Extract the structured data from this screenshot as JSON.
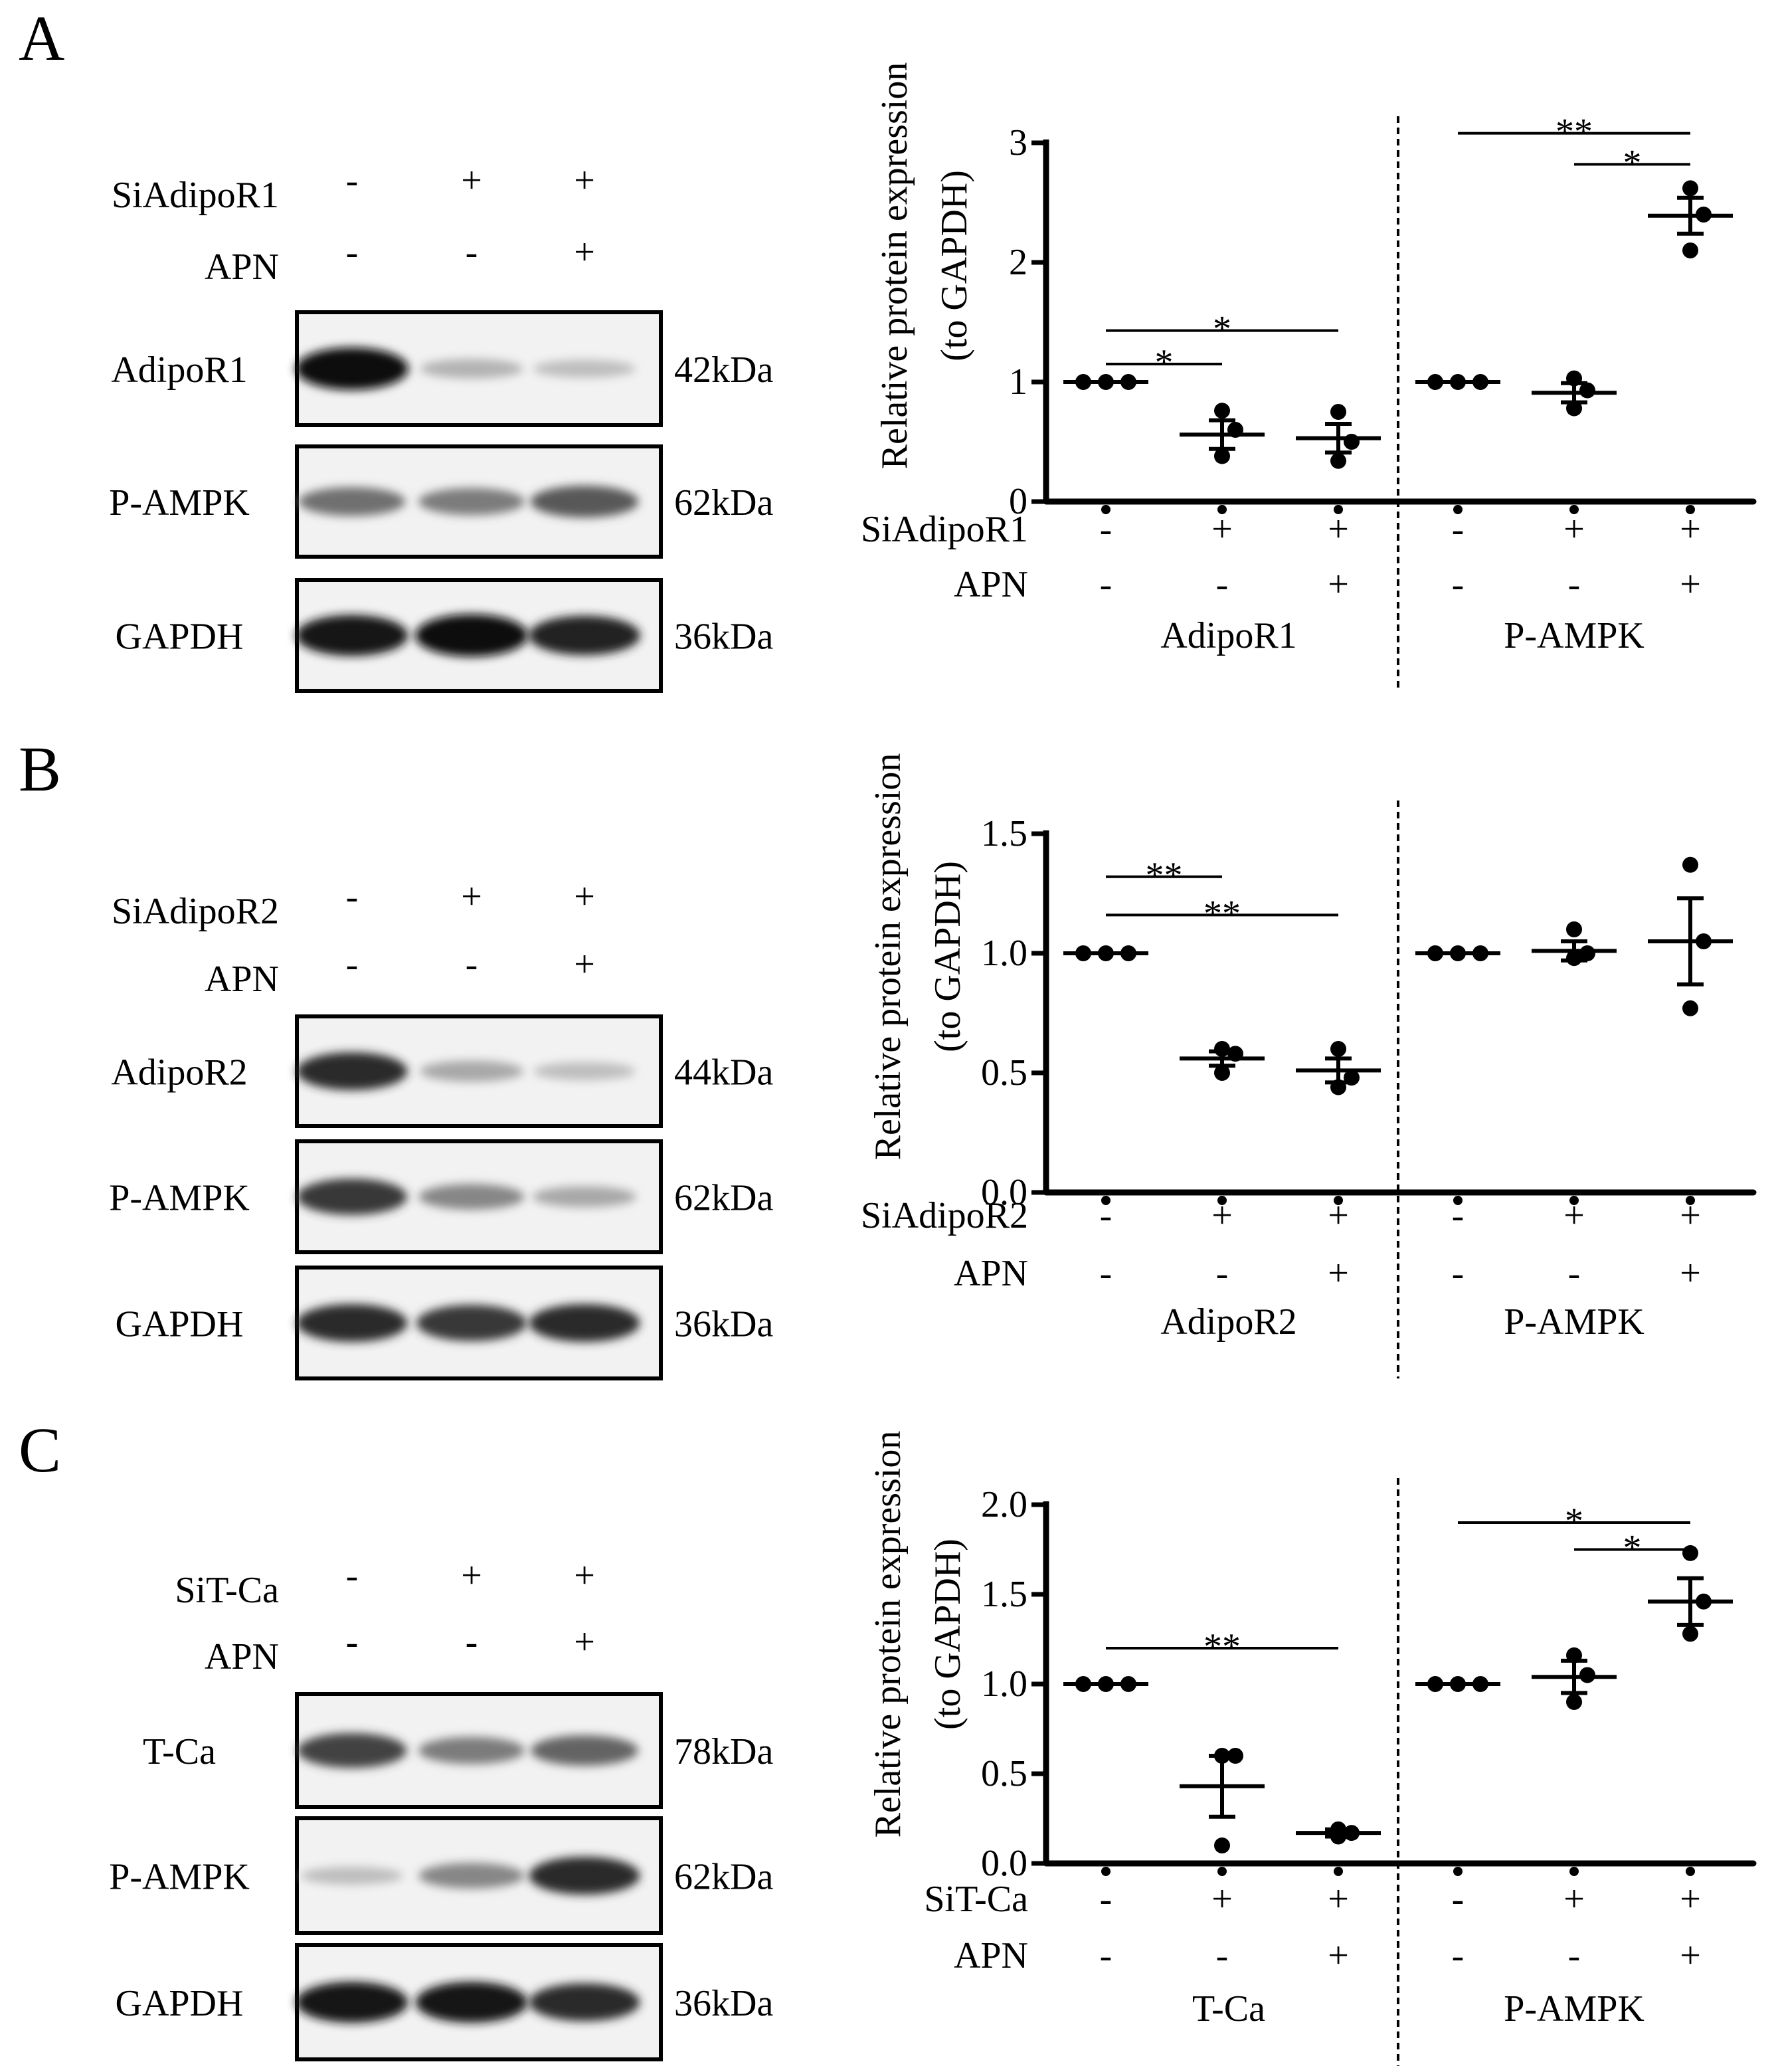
{
  "colors": {
    "ink": "#000000",
    "background": "#ffffff",
    "blot_background": "#f2f2f2"
  },
  "panels": [
    {
      "letter": "A",
      "blot": {
        "header": [
          {
            "label": "SiAdipoR1",
            "marks": [
              "-",
              "+",
              "+"
            ]
          },
          {
            "label": "APN",
            "marks": [
              "-",
              "-",
              "+"
            ]
          }
        ],
        "rows": [
          {
            "label": "AdipoR1",
            "size": "42kDa",
            "bands": [
              1.0,
              0.25,
              0.2
            ]
          },
          {
            "label": "P-AMPK",
            "size": "62kDa",
            "bands": [
              0.55,
              0.5,
              0.65
            ]
          },
          {
            "label": "GAPDH",
            "size": "36kDa",
            "bands": [
              0.95,
              1.0,
              0.9
            ]
          }
        ]
      },
      "chart_data": {
        "type": "scatter",
        "ylabel": [
          "Relative protein expression",
          "(to GAPDH)"
        ],
        "ylim": [
          0,
          3
        ],
        "yticks": [
          "0",
          "1",
          "2",
          "3"
        ],
        "ytick_values": [
          0,
          1,
          2,
          3
        ],
        "x_rows": [
          {
            "label": "SiAdipoR1",
            "marks": [
              "-",
              "+",
              "+",
              "-",
              "+",
              "+"
            ]
          },
          {
            "label": "APN",
            "marks": [
              "-",
              "-",
              "+",
              "-",
              "-",
              "+"
            ]
          }
        ],
        "groups": [
          "AdipoR1",
          "P-AMPK"
        ],
        "points": [
          [
            1.0,
            1.0,
            1.0
          ],
          [
            0.76,
            0.6,
            0.38
          ],
          [
            0.75,
            0.5,
            0.34
          ],
          [
            1.0,
            1.0,
            1.0
          ],
          [
            1.03,
            0.93,
            0.78
          ],
          [
            2.62,
            2.4,
            2.1
          ]
        ],
        "means": [
          1.0,
          0.56,
          0.53,
          1.0,
          0.91,
          2.39
        ],
        "sems": [
          0.0,
          0.12,
          0.12,
          0.0,
          0.08,
          0.15
        ],
        "significance": [
          {
            "from": 0,
            "to": 1,
            "label": "*",
            "y": 1.15
          },
          {
            "from": 0,
            "to": 2,
            "label": "*",
            "y": 1.43
          },
          {
            "from": 3,
            "to": 5,
            "label": "**",
            "y": 3.08
          },
          {
            "from": 4,
            "to": 5,
            "label": "*",
            "y": 2.82
          }
        ]
      }
    },
    {
      "letter": "B",
      "blot": {
        "header": [
          {
            "label": "SiAdipoR2",
            "marks": [
              "-",
              "+",
              "+"
            ]
          },
          {
            "label": "APN",
            "marks": [
              "-",
              "-",
              "+"
            ]
          }
        ],
        "rows": [
          {
            "label": "AdipoR2",
            "size": "44kDa",
            "bands": [
              0.85,
              0.3,
              0.2
            ]
          },
          {
            "label": "P-AMPK",
            "size": "62kDa",
            "bands": [
              0.8,
              0.45,
              0.3
            ]
          },
          {
            "label": "GAPDH",
            "size": "36kDa",
            "bands": [
              0.85,
              0.8,
              0.85
            ]
          }
        ]
      },
      "chart_data": {
        "type": "scatter",
        "ylabel": [
          "Relative protein expression",
          "(to GAPDH)"
        ],
        "ylim": [
          0,
          1.5
        ],
        "yticks": [
          "0.0",
          "0.5",
          "1.0",
          "1.5"
        ],
        "ytick_values": [
          0,
          0.5,
          1.0,
          1.5
        ],
        "x_rows": [
          {
            "label": "SiAdipoR2",
            "marks": [
              "-",
              "+",
              "+",
              "-",
              "+",
              "+"
            ]
          },
          {
            "label": "APN",
            "marks": [
              "-",
              "-",
              "+",
              "-",
              "-",
              "+"
            ]
          }
        ],
        "groups": [
          "AdipoR2",
          "P-AMPK"
        ],
        "points": [
          [
            1.0,
            1.0,
            1.0
          ],
          [
            0.6,
            0.58,
            0.5
          ],
          [
            0.6,
            0.48,
            0.44
          ],
          [
            1.0,
            1.0,
            1.0
          ],
          [
            1.1,
            1.0,
            0.98
          ],
          [
            1.37,
            1.05,
            0.77
          ]
        ],
        "means": [
          1.0,
          0.56,
          0.51,
          1.0,
          1.01,
          1.05
        ],
        "sems": [
          0.0,
          0.03,
          0.05,
          0.0,
          0.04,
          0.18
        ],
        "significance": [
          {
            "from": 0,
            "to": 1,
            "label": "**",
            "y": 1.32
          },
          {
            "from": 0,
            "to": 2,
            "label": "**",
            "y": 1.16
          }
        ]
      }
    },
    {
      "letter": "C",
      "blot": {
        "header": [
          {
            "label": "SiT-Ca",
            "marks": [
              "-",
              "+",
              "+"
            ]
          },
          {
            "label": "APN",
            "marks": [
              "-",
              "-",
              "+"
            ]
          }
        ],
        "rows": [
          {
            "label": "T-Ca",
            "size": "78kDa",
            "bands": [
              0.75,
              0.5,
              0.6
            ]
          },
          {
            "label": "P-AMPK",
            "size": "62kDa",
            "bands": [
              0.2,
              0.45,
              0.85
            ]
          },
          {
            "label": "GAPDH",
            "size": "36kDa",
            "bands": [
              0.95,
              0.95,
              0.85
            ]
          }
        ]
      },
      "chart_data": {
        "type": "scatter",
        "ylabel": [
          "Relative protein expression",
          "(to GAPDH)"
        ],
        "ylim": [
          0,
          2.0
        ],
        "yticks": [
          "0.0",
          "0.5",
          "1.0",
          "1.5",
          "2.0"
        ],
        "ytick_values": [
          0,
          0.5,
          1.0,
          1.5,
          2.0
        ],
        "x_rows": [
          {
            "label": "SiT-Ca",
            "marks": [
              "-",
              "+",
              "+",
              "-",
              "+",
              "+"
            ]
          },
          {
            "label": "APN",
            "marks": [
              "-",
              "-",
              "+",
              "-",
              "-",
              "+"
            ]
          }
        ],
        "groups": [
          "T-Ca",
          "P-AMPK"
        ],
        "points": [
          [
            1.0,
            1.0,
            1.0
          ],
          [
            0.6,
            0.6,
            0.1
          ],
          [
            0.19,
            0.17,
            0.15
          ],
          [
            1.0,
            1.0,
            1.0
          ],
          [
            1.16,
            1.05,
            0.9
          ],
          [
            1.73,
            1.46,
            1.28
          ]
        ],
        "means": [
          1.0,
          0.43,
          0.17,
          1.0,
          1.04,
          1.46
        ],
        "sems": [
          0.0,
          0.17,
          0.02,
          0.0,
          0.09,
          0.13
        ],
        "significance": [
          {
            "from": 0,
            "to": 2,
            "label": "**",
            "y": 1.2
          },
          {
            "from": 3,
            "to": 5,
            "label": "*",
            "y": 1.9
          },
          {
            "from": 4,
            "to": 5,
            "label": "*",
            "y": 1.75
          }
        ]
      }
    }
  ]
}
